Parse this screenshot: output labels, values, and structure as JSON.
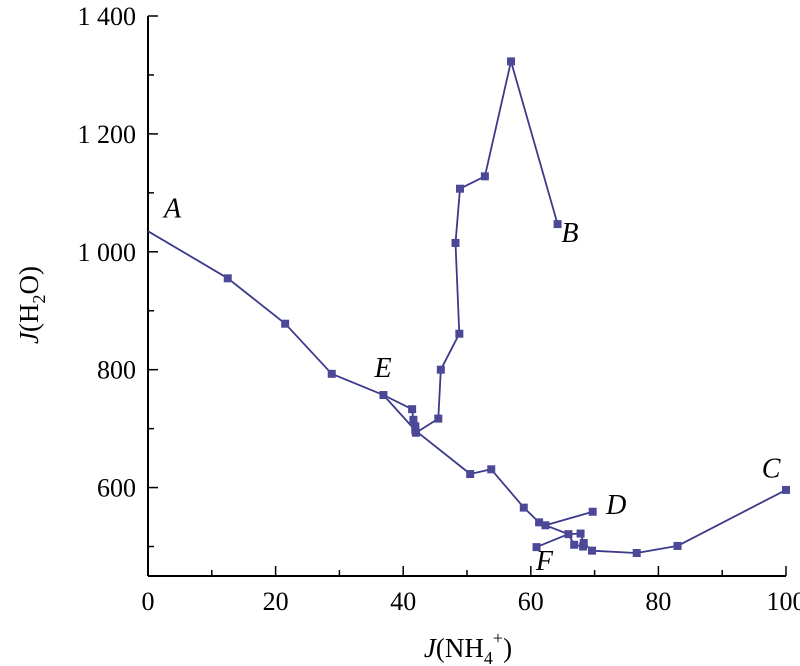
{
  "chart_data": {
    "type": "line",
    "xlabel": {
      "italic": "J",
      "rest": "(NH",
      "sub": "4",
      "sup": "+",
      "close": ")"
    },
    "ylabel": {
      "italic": "J",
      "rest": "(H",
      "sub": "2",
      "close": "O)"
    },
    "xlim": [
      0,
      100
    ],
    "ylim": [
      450,
      1400
    ],
    "x_ticks": [
      {
        "value": 0,
        "label": "0"
      },
      {
        "value": 20,
        "label": "20"
      },
      {
        "value": 40,
        "label": "40"
      },
      {
        "value": 60,
        "label": "60"
      },
      {
        "value": 80,
        "label": "80"
      },
      {
        "value": 100,
        "label": "100"
      }
    ],
    "y_ticks": [
      {
        "value": 600,
        "label": "600"
      },
      {
        "value": 800,
        "label": "800"
      },
      {
        "value": 1000,
        "label": "1 000"
      },
      {
        "value": 1200,
        "label": "1 200"
      },
      {
        "value": 1400,
        "label": "1 400"
      }
    ],
    "series_color": "#3c3a8a",
    "marker_color": "#4b4897",
    "series": [
      {
        "points": [
          [
            0,
            1035
          ],
          [
            12.5,
            955
          ],
          [
            21.5,
            878
          ],
          [
            28.8,
            793
          ],
          [
            36.9,
            757
          ],
          [
            41.9,
            697
          ],
          [
            50.5,
            623
          ],
          [
            53.8,
            631
          ],
          [
            58.9,
            566
          ],
          [
            61.3,
            541
          ],
          [
            62.3,
            536
          ],
          [
            65.9,
            521
          ],
          [
            67.8,
            522
          ],
          [
            68.3,
            506
          ],
          [
            69.6,
            493
          ],
          [
            76.6,
            489
          ],
          [
            83.0,
            501
          ],
          [
            100,
            596
          ]
        ]
      },
      {
        "points": [
          [
            36.9,
            757
          ],
          [
            41.4,
            733
          ],
          [
            41.6,
            715
          ],
          [
            41.9,
            704
          ],
          [
            42.0,
            693
          ],
          [
            45.5,
            717
          ],
          [
            45.9,
            800
          ],
          [
            48.8,
            861
          ],
          [
            48.2,
            1015
          ],
          [
            48.9,
            1107
          ],
          [
            52.8,
            1128
          ],
          [
            56.9,
            1323
          ],
          [
            64.2,
            1047
          ]
        ]
      },
      {
        "points": [
          [
            62.3,
            536
          ],
          [
            69.7,
            559
          ]
        ]
      },
      {
        "points": [
          [
            60.9,
            499
          ],
          [
            65.9,
            521
          ],
          [
            66.8,
            503
          ],
          [
            68.2,
            500
          ]
        ]
      }
    ],
    "point_labels": [
      {
        "text": "A",
        "x": 2.5,
        "y": 1058
      },
      {
        "text": "B",
        "x": 64.8,
        "y": 1017
      },
      {
        "text": "C",
        "x": 96.2,
        "y": 617
      },
      {
        "text": "D",
        "x": 71.8,
        "y": 555
      },
      {
        "text": "E",
        "x": 35.5,
        "y": 788
      },
      {
        "text": "F",
        "x": 60.8,
        "y": 460
      }
    ]
  }
}
